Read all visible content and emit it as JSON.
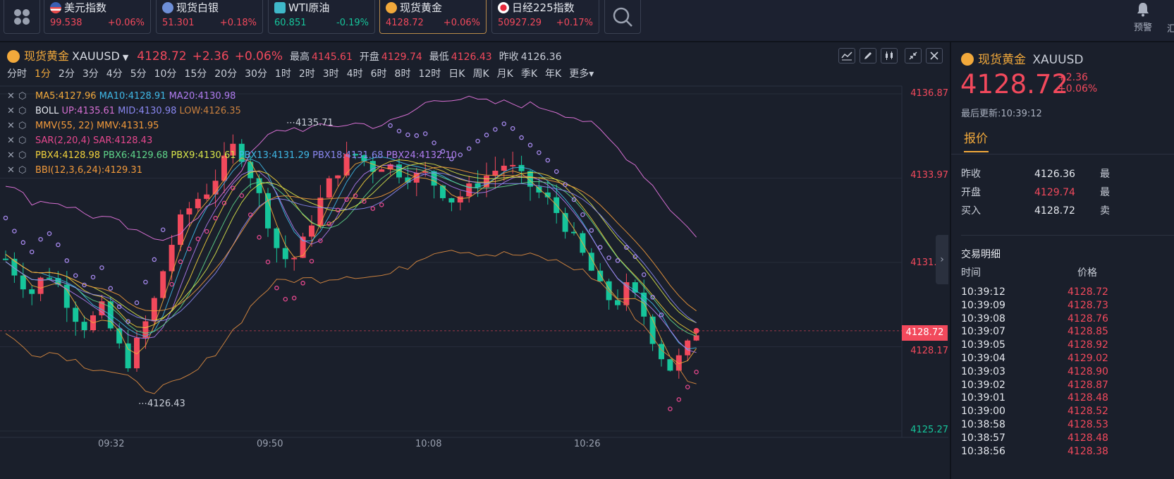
{
  "tickers": [
    {
      "name": "美元指数",
      "price": "99.538",
      "change": "+0.06%",
      "flag": "us",
      "price_color": "red",
      "change_color": "red"
    },
    {
      "name": "现货白银",
      "price": "51.301",
      "change": "+0.18%",
      "flag": "silver",
      "price_color": "red",
      "change_color": "red"
    },
    {
      "name": "WTI原油",
      "price": "60.851",
      "change": "-0.19%",
      "flag": "oil",
      "price_color": "green",
      "change_color": "green"
    },
    {
      "name": "现货黄金",
      "price": "4128.72",
      "change": "+0.06%",
      "flag": "gold",
      "price_color": "red",
      "change_color": "red"
    },
    {
      "name": "日经225指数",
      "price": "50927.29",
      "change": "+0.17%",
      "flag": "jp",
      "price_color": "red",
      "change_color": "red"
    }
  ],
  "alert_label": "预警",
  "more_top_label": "汇",
  "header": {
    "name": "现货黄金",
    "code": "XAUUSD",
    "price": "4128.72",
    "change": "+2.36",
    "change_pct": "+0.06%",
    "high_label": "最高",
    "high": "4145.61",
    "open_label": "开盘",
    "open": "4129.74",
    "low_label": "最低",
    "low": "4126.43",
    "prev_label": "昨收",
    "prev": "4126.36"
  },
  "periods": [
    "分时",
    "1分",
    "2分",
    "3分",
    "4分",
    "5分",
    "10分",
    "15分",
    "20分",
    "30分",
    "1时",
    "2时",
    "3时",
    "4时",
    "6时",
    "8时",
    "12时",
    "日K",
    "周K",
    "月K",
    "季K",
    "年K",
    "更多▾"
  ],
  "active_period": "1分",
  "indicators": [
    {
      "parts": [
        {
          "text": "MA5:4127.96",
          "color": "#f2a93b"
        },
        {
          "text": " MA10:4128.91",
          "color": "#3fb8e6"
        },
        {
          "text": " MA20:4130.98",
          "color": "#b07cf0"
        }
      ]
    },
    {
      "parts": [
        {
          "text": "BOLL ",
          "color": "#e6e9ef"
        },
        {
          "text": " UP:4135.61",
          "color": "#d66fd2"
        },
        {
          "text": " MID:4130.98",
          "color": "#8a87f0"
        },
        {
          "text": " LOW:4126.35",
          "color": "#c9803e"
        }
      ]
    },
    {
      "parts": [
        {
          "text": "MMV(55, 22)",
          "color": "#f29a3b"
        },
        {
          "text": " MMV:4131.95",
          "color": "#f29a3b"
        }
      ]
    },
    {
      "parts": [
        {
          "text": "SAR(2,20,4)",
          "color": "#e6488e"
        },
        {
          "text": " SAR:4128.43",
          "color": "#e6488e"
        }
      ]
    },
    {
      "parts": [
        {
          "text": "PBX4:4128.98",
          "color": "#f2d23b"
        },
        {
          "text": " PBX6:4129.68",
          "color": "#5fd68a"
        },
        {
          "text": " PBX9:4130.61",
          "color": "#d9e64a"
        },
        {
          "text": " PBX13:4131.29",
          "color": "#3fb8e6"
        },
        {
          "text": " PBX18:4131.68",
          "color": "#8a87f0"
        },
        {
          "text": " PBX24:4132.10",
          "color": "#b07cf0"
        }
      ]
    },
    {
      "parts": [
        {
          "text": "BBI(12,3,6,24):4129.31",
          "color": "#f29a3b"
        }
      ]
    }
  ],
  "price_scale": [
    "4136.87",
    "4133.97",
    "4131.07",
    "4128.17",
    "4125.27"
  ],
  "last_price_tag": "4128.72",
  "high_annotation": "4135.71",
  "low_annotation": "4126.43",
  "time_axis": [
    "09:32",
    "09:50",
    "10:08",
    "10:26"
  ],
  "right_panel": {
    "name": "现货黄金",
    "code": "XAUUSD",
    "price": "4128.72",
    "change": "+2.36",
    "change_pct": "+0.06%",
    "updated_label": "最后更新:10:39:12",
    "tab": "报价",
    "stats": [
      {
        "label": "昨收",
        "value": "4126.36",
        "red": false,
        "extra": "最"
      },
      {
        "label": "开盘",
        "value": "4129.74",
        "red": true,
        "extra": "最"
      },
      {
        "label": "买入",
        "value": "4128.72",
        "red": false,
        "extra": "卖"
      }
    ],
    "section_title": "交易明细",
    "col_time": "时间",
    "col_price": "价格",
    "trades": [
      {
        "time": "10:39:12",
        "price": "4128.72"
      },
      {
        "time": "10:39:09",
        "price": "4128.73"
      },
      {
        "time": "10:39:08",
        "price": "4128.76"
      },
      {
        "time": "10:39:07",
        "price": "4128.85"
      },
      {
        "time": "10:39:05",
        "price": "4128.92"
      },
      {
        "time": "10:39:04",
        "price": "4129.02"
      },
      {
        "time": "10:39:03",
        "price": "4128.90"
      },
      {
        "time": "10:39:02",
        "price": "4128.87"
      },
      {
        "time": "10:39:01",
        "price": "4128.48"
      },
      {
        "time": "10:39:00",
        "price": "4128.52"
      },
      {
        "time": "10:38:58",
        "price": "4128.53"
      },
      {
        "time": "10:38:57",
        "price": "4128.48"
      },
      {
        "time": "10:38:56",
        "price": "4128.38"
      }
    ]
  },
  "colors": {
    "up": "#f2495c",
    "down": "#16c59b",
    "accent": "#f2a93b"
  }
}
